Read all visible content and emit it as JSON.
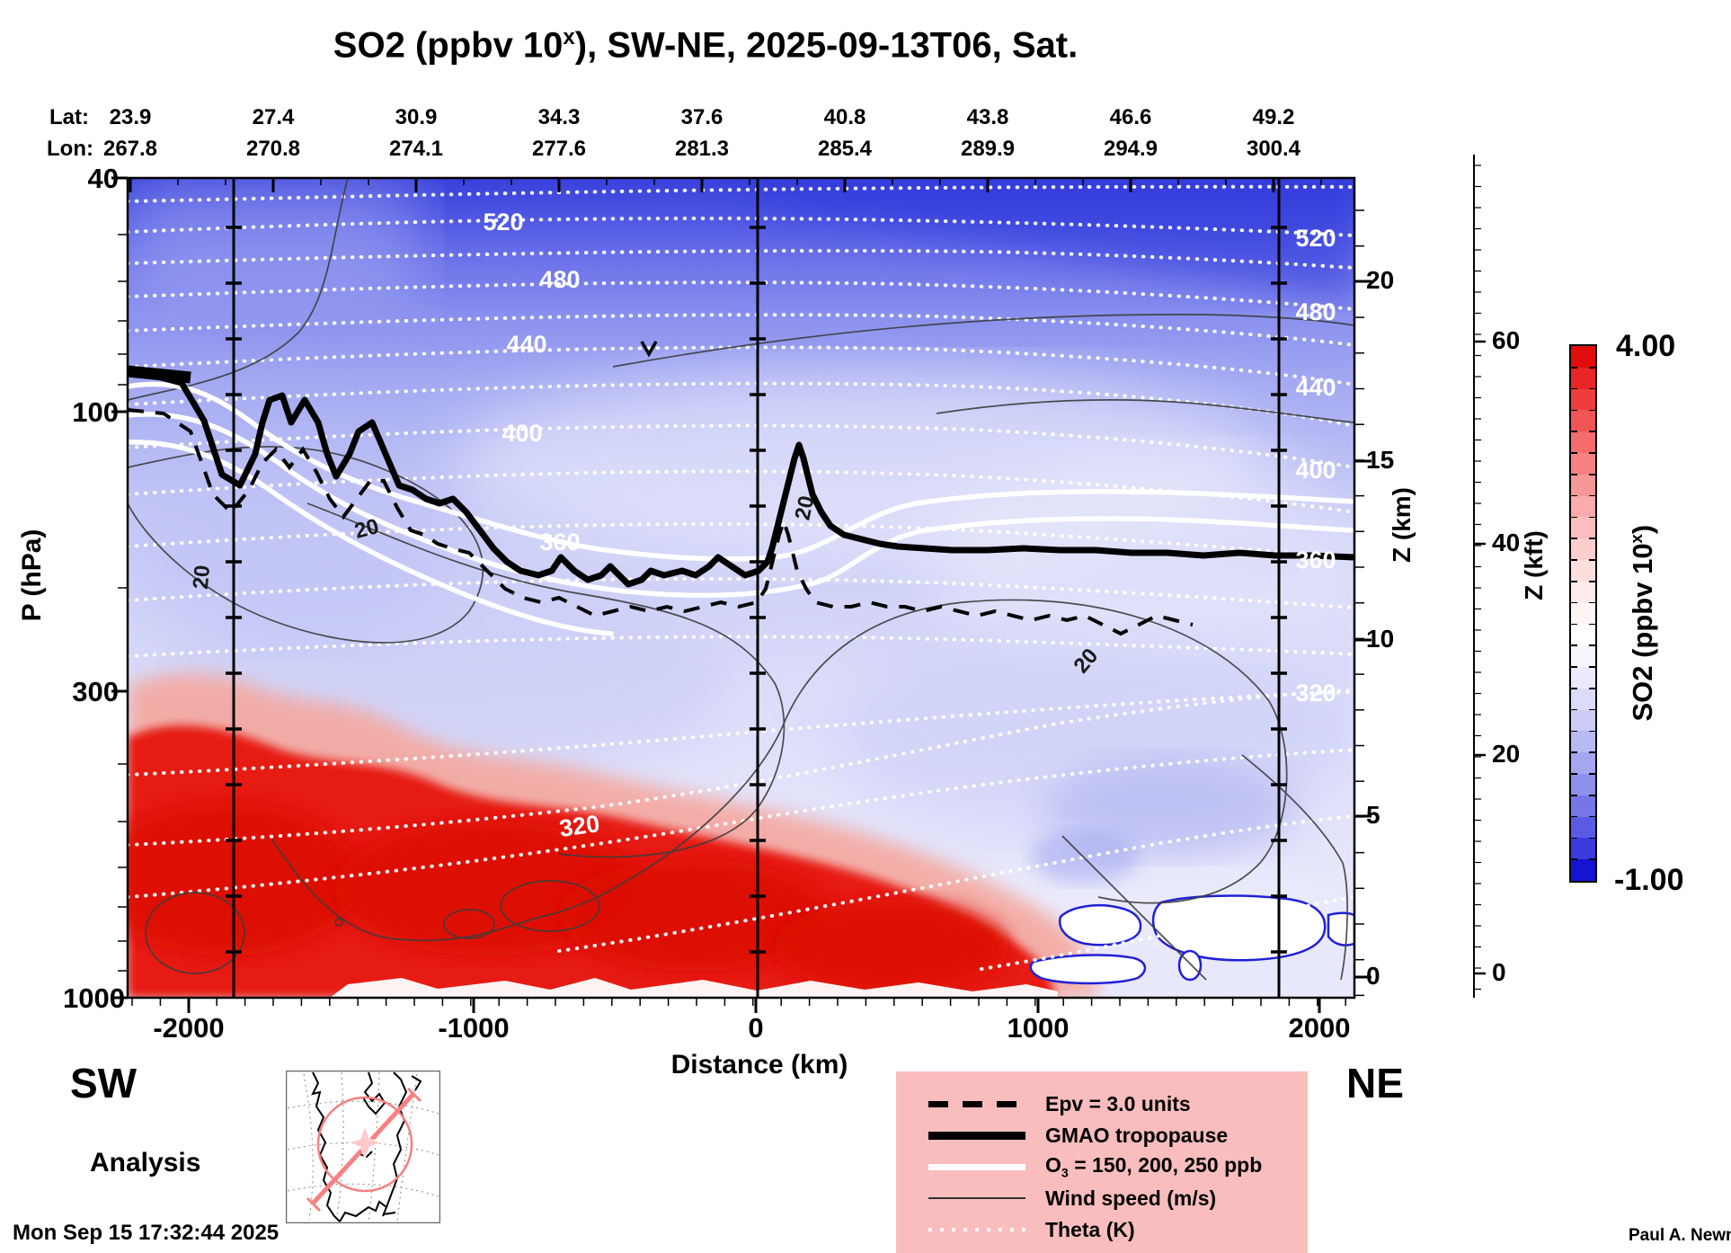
{
  "title": {
    "pre": "SO2 (ppbv 10",
    "sup": "x",
    "post": "), SW-NE, 2025-09-13T06, Sat."
  },
  "top_axis": {
    "lat_label": "Lat:",
    "lon_label": "Lon:",
    "lat": [
      "23.9",
      "27.4",
      "30.9",
      "34.3",
      "37.6",
      "40.8",
      "43.8",
      "46.6",
      "49.2"
    ],
    "lon": [
      "267.8",
      "270.8",
      "274.1",
      "277.6",
      "281.3",
      "285.4",
      "289.9",
      "294.9",
      "300.4"
    ]
  },
  "pressure_axis": {
    "label": "P (hPa)",
    "ticks": [
      "40",
      "100",
      "300",
      "1000"
    ]
  },
  "distance_axis": {
    "label": "Distance (km)",
    "ticks": [
      "-2000",
      "-1000",
      "0",
      "1000",
      "2000"
    ]
  },
  "z_km_axis": {
    "label": "Z (km)",
    "ticks": [
      "20",
      "15",
      "10",
      "5",
      "0"
    ]
  },
  "z_kft_axis": {
    "label": "Z (kft)",
    "ticks": [
      "60",
      "40",
      "20",
      "0"
    ]
  },
  "colorbar": {
    "label": {
      "pre": "SO2 (ppbv 10",
      "sup": "x",
      "post": ")"
    },
    "max": "4.00",
    "min": "-1.00",
    "colors": [
      "#e20d0d",
      "#e92525",
      "#ee3d3d",
      "#f15555",
      "#f46c6c",
      "#f68282",
      "#f89797",
      "#faabab",
      "#fbbdbd",
      "#fccece",
      "#fddddd",
      "#feebeb",
      "#fff5f5",
      "#ffffff",
      "#f6f6fe",
      "#eaeafc",
      "#dcdcfa",
      "#ccccf7",
      "#b9b9f4",
      "#a5a5f0",
      "#8f8fec",
      "#7676e8",
      "#5a5ae3",
      "#3b3bde",
      "#1414d2"
    ]
  },
  "contours": {
    "theta_left": [
      "520",
      "480",
      "440",
      "400",
      "360"
    ],
    "theta_right": [
      "520",
      "480",
      "440",
      "400",
      "360",
      "320"
    ],
    "theta_bottom": "320",
    "wind_labels": [
      "20",
      "20",
      "20",
      "20"
    ]
  },
  "legend": {
    "bg": "#f9bdbd",
    "epv": "Epv = 3.0 units",
    "tropopause": "GMAO tropopause",
    "o3": {
      "pre": "O",
      "sub": "3",
      "post": " = 150, 200, 250 ppb"
    },
    "wind": "Wind speed (m/s)",
    "theta": "Theta (K)"
  },
  "corners": {
    "sw": "SW",
    "ne": "NE",
    "mode": "Analysis",
    "timestamp": "Mon Sep 15 17:32:44 2025",
    "credit": "Paul A. Newman (NASA"
  },
  "chart_data": {
    "type": "heatmap",
    "title": "SO2 (ppbv 10^x), SW-NE, 2025-09-13T06, Sat.",
    "xlabel": "Distance (km)",
    "x_ticks": [
      -2000,
      -1000,
      0,
      1000,
      2000
    ],
    "x_range": [
      -2240,
      2130
    ],
    "ylabel": "P (hPa)",
    "y_scale": "log",
    "y_ticks": [
      40,
      100,
      300,
      1000
    ],
    "y_range": [
      40,
      1000
    ],
    "z_km_ticks": [
      20,
      15,
      10,
      5,
      0
    ],
    "z_kft_ticks": [
      60,
      40,
      20,
      0
    ],
    "top_axis_lat": [
      23.9,
      27.4,
      30.9,
      34.3,
      37.6,
      40.8,
      43.8,
      46.6,
      49.2
    ],
    "top_axis_lon": [
      267.8,
      270.8,
      274.1,
      277.6,
      281.3,
      285.4,
      289.9,
      294.9,
      300.4
    ],
    "colorbar": {
      "label": "SO2 (ppbv 10^x)",
      "min": -1.0,
      "max": 4.0,
      "step": 0.2,
      "levels": 25
    },
    "overlays": [
      "Epv = 3.0 units",
      "GMAO tropopause",
      "O3 = 150, 200, 250 ppb",
      "Wind speed (m/s)",
      "Theta (K)"
    ],
    "theta_contour_labels": [
      520,
      480,
      440,
      400,
      360,
      320
    ],
    "wind_contour_labels": [
      20,
      20,
      20,
      20
    ],
    "vertical_marker_lines_km": [
      -1860,
      0,
      1860
    ],
    "description": "Filled SO2 cross-section along SW-NE path: low values (blue/white) in stratosphere and mid-troposphere, high values (red, ~10^4 ppbv scale max) in boundary layer below ~700 hPa from SW end to ~+1000 km; white low cutouts near surface at NE end. Tropopause near 200-250 hPa."
  }
}
